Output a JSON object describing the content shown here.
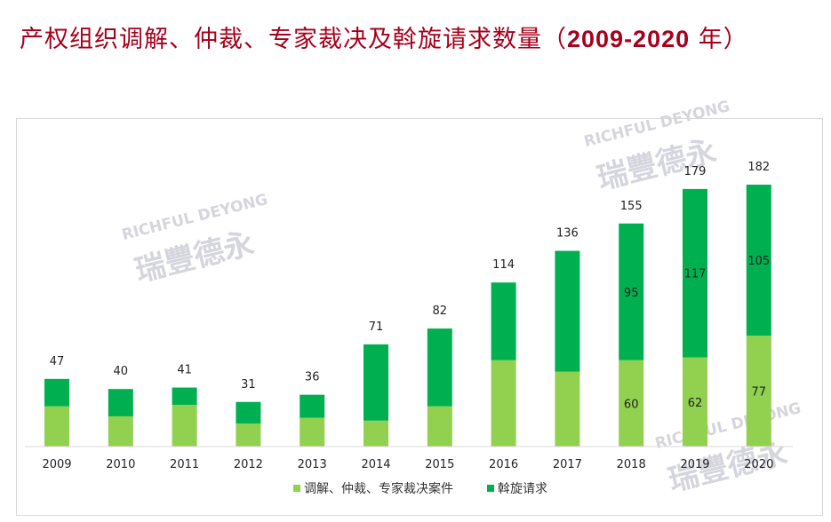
{
  "title": "产权组织调解、仲裁、专家裁决及斡旋请求数量（",
  "title_years": "2009-2020",
  "title_end": " 年）",
  "watermark": {
    "en": "RICHFUL DEYONG",
    "cn": "瑞豐德永"
  },
  "chart_data": {
    "type": "bar",
    "stacked": true,
    "categories": [
      "2009",
      "2010",
      "2011",
      "2012",
      "2013",
      "2014",
      "2015",
      "2016",
      "2017",
      "2018",
      "2019",
      "2020"
    ],
    "totals": [
      47,
      40,
      41,
      31,
      36,
      71,
      82,
      114,
      136,
      155,
      179,
      182
    ],
    "series": [
      {
        "name": "调解、仲裁、专家裁决案件",
        "color": "#92d050",
        "values": [
          28,
          21,
          29,
          16,
          20,
          18,
          28,
          60,
          52,
          60,
          62,
          77
        ],
        "labeled": [
          false,
          false,
          false,
          false,
          false,
          false,
          false,
          false,
          false,
          true,
          true,
          true
        ]
      },
      {
        "name": "斡旋请求",
        "color": "#00b050",
        "values": [
          19,
          19,
          12,
          15,
          16,
          53,
          54,
          54,
          84,
          95,
          117,
          105
        ],
        "labeled": [
          false,
          false,
          false,
          false,
          false,
          false,
          false,
          false,
          false,
          true,
          true,
          true
        ]
      }
    ],
    "legend": "bottom",
    "grid": false,
    "ylim": [
      0,
      190
    ]
  }
}
